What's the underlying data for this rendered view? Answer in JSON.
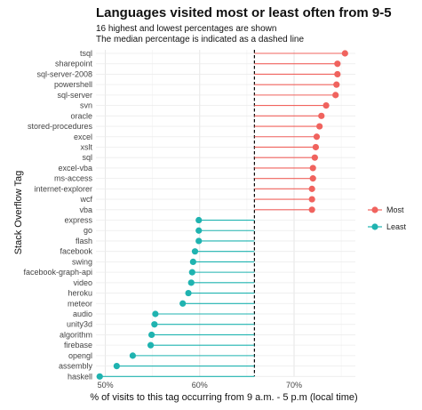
{
  "chart_data": {
    "type": "lollipop",
    "title": "Languages visited most or least often from 9-5",
    "subtitle_lines": [
      "16 highest and lowest percentages are shown",
      "The median percentage is indicated as a dashed line"
    ],
    "xlabel": "% of visits to this tag occurring from 9 a.m. - 5 p.m (local time)",
    "ylabel": "Stack Overflow Tag",
    "xlim": [
      0.49,
      0.765
    ],
    "xticks": [
      0.5,
      0.6,
      0.7
    ],
    "xtick_labels": [
      "50%",
      "60%",
      "70%"
    ],
    "median": 0.658,
    "grid": true,
    "legend": {
      "position": "right",
      "entries": [
        {
          "name": "Most",
          "color": "#F0635E"
        },
        {
          "name": "Least",
          "color": "#1FB3B0"
        }
      ]
    },
    "points": [
      {
        "tag": "tsql",
        "value": 0.754,
        "group": "Most"
      },
      {
        "tag": "sharepoint",
        "value": 0.746,
        "group": "Most"
      },
      {
        "tag": "sql-server-2008",
        "value": 0.746,
        "group": "Most"
      },
      {
        "tag": "powershell",
        "value": 0.745,
        "group": "Most"
      },
      {
        "tag": "sql-server",
        "value": 0.744,
        "group": "Most"
      },
      {
        "tag": "svn",
        "value": 0.734,
        "group": "Most"
      },
      {
        "tag": "oracle",
        "value": 0.729,
        "group": "Most"
      },
      {
        "tag": "stored-procedures",
        "value": 0.727,
        "group": "Most"
      },
      {
        "tag": "excel",
        "value": 0.724,
        "group": "Most"
      },
      {
        "tag": "xslt",
        "value": 0.723,
        "group": "Most"
      },
      {
        "tag": "sql",
        "value": 0.722,
        "group": "Most"
      },
      {
        "tag": "excel-vba",
        "value": 0.72,
        "group": "Most"
      },
      {
        "tag": "ms-access",
        "value": 0.72,
        "group": "Most"
      },
      {
        "tag": "internet-explorer",
        "value": 0.719,
        "group": "Most"
      },
      {
        "tag": "wcf",
        "value": 0.719,
        "group": "Most"
      },
      {
        "tag": "vba",
        "value": 0.719,
        "group": "Most"
      },
      {
        "tag": "express",
        "value": 0.599,
        "group": "Least"
      },
      {
        "tag": "go",
        "value": 0.599,
        "group": "Least"
      },
      {
        "tag": "flash",
        "value": 0.599,
        "group": "Least"
      },
      {
        "tag": "facebook",
        "value": 0.595,
        "group": "Least"
      },
      {
        "tag": "swing",
        "value": 0.593,
        "group": "Least"
      },
      {
        "tag": "facebook-graph-api",
        "value": 0.592,
        "group": "Least"
      },
      {
        "tag": "video",
        "value": 0.591,
        "group": "Least"
      },
      {
        "tag": "heroku",
        "value": 0.588,
        "group": "Least"
      },
      {
        "tag": "meteor",
        "value": 0.582,
        "group": "Least"
      },
      {
        "tag": "audio",
        "value": 0.553,
        "group": "Least"
      },
      {
        "tag": "unity3d",
        "value": 0.552,
        "group": "Least"
      },
      {
        "tag": "algorithm",
        "value": 0.549,
        "group": "Least"
      },
      {
        "tag": "firebase",
        "value": 0.548,
        "group": "Least"
      },
      {
        "tag": "opengl",
        "value": 0.529,
        "group": "Least"
      },
      {
        "tag": "assembly",
        "value": 0.512,
        "group": "Least"
      },
      {
        "tag": "haskell",
        "value": 0.494,
        "group": "Least"
      }
    ]
  }
}
